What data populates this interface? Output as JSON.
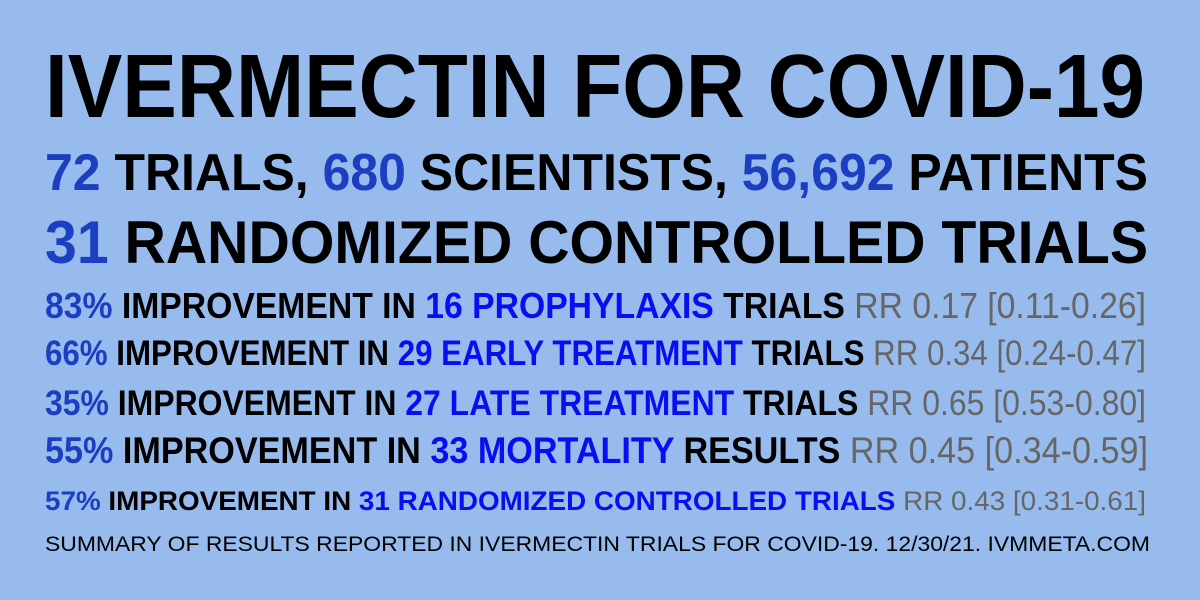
{
  "title": "IVERMECTIN FOR COVID-19",
  "stats": {
    "trials": "72",
    "trials_label": " TRIALS, ",
    "scientists": "680",
    "scientists_label": " SCIENTISTS, ",
    "patients": "56,692",
    "patients_label": " PATIENTS"
  },
  "rct": {
    "count": "31",
    "label": " RANDOMIZED CONTROLLED TRIALS"
  },
  "results": [
    {
      "pct": "83%",
      "mid": " IMPROVEMENT IN ",
      "group": "16 PROPHYLAXIS",
      "unit": " TRIALS ",
      "rr": "RR 0.17 [0.11-0.26]"
    },
    {
      "pct": "66%",
      "mid": " IMPROVEMENT IN ",
      "group": "29 EARLY TREATMENT",
      "unit": " TRIALS ",
      "rr": "RR 0.34 [0.24-0.47]"
    },
    {
      "pct": "35%",
      "mid": " IMPROVEMENT IN ",
      "group": "27 LATE TREATMENT",
      "unit": " TRIALS ",
      "rr": "RR 0.65 [0.53-0.80]"
    },
    {
      "pct": "55%",
      "mid": " IMPROVEMENT IN ",
      "group": "33 MORTALITY",
      "unit": " RESULTS ",
      "rr": "RR 0.45 [0.34-0.59]"
    },
    {
      "pct": "57%",
      "mid": " IMPROVEMENT IN ",
      "group": "31 RANDOMIZED CONTROLLED TRIALS",
      "unit": " ",
      "rr": "RR 0.43 [0.31-0.61]"
    }
  ],
  "footer": "SUMMARY OF RESULTS REPORTED IN IVERMECTIN TRIALS FOR COVID-19. 12/30/21. IVMMETA.COM",
  "colors": {
    "background": "#98bbee",
    "percent": "#1b3fc0",
    "group": "#0a0df0",
    "rr": "#666666",
    "text": "#000000"
  }
}
